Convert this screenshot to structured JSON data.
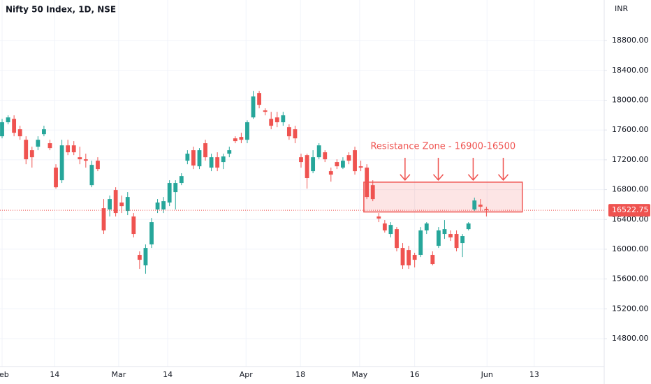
{
  "chart_data": {
    "type": "candlestick",
    "title": "Nifty 50 Index, 1D, NSE",
    "currency": "INR",
    "annotation": "Resistance Zone - 16900-16500",
    "up_color": "#26a69a",
    "down_color": "#ef5350",
    "grid": true,
    "open": [
      17516,
      17704,
      17750,
      17610,
      17469,
      17329,
      17376,
      17544,
      17423,
      17095,
      16926,
      17394,
      17394,
      17235,
      17207,
      16860,
      17188,
      16551,
      16533,
      16795,
      16626,
      16514,
      16439,
      15924,
      15783,
      16064,
      16533,
      16533,
      16626,
      16767,
      16889,
      17188,
      17329,
      17113,
      17423,
      17095,
      17235,
      17170,
      17282,
      17488,
      17507,
      17469,
      17769,
      18097,
      17863,
      17750,
      17769,
      17704,
      17638,
      17610,
      17235,
      17263,
      17048,
      17235,
      17301,
      17048,
      17170,
      17095,
      17263,
      17329,
      17113,
      17095,
      16860,
      16439,
      16345,
      16205,
      16270,
      16017,
      15989,
      15924,
      15924,
      16252,
      15924,
      16045,
      16205,
      16205,
      16205,
      16083,
      16270,
      16533,
      16598,
      16540
    ],
    "high": [
      17750,
      17797,
      17797,
      17657,
      17516,
      17376,
      17516,
      17657,
      17469,
      17141,
      17469,
      17469,
      17451,
      17376,
      17282,
      17188,
      17235,
      16673,
      16720,
      16832,
      16720,
      16767,
      16486,
      15971,
      16064,
      16420,
      16673,
      16701,
      16926,
      16926,
      17020,
      17329,
      17376,
      17357,
      17469,
      17282,
      17301,
      17282,
      17376,
      17516,
      17563,
      17730,
      18125,
      18125,
      17891,
      17844,
      17844,
      17844,
      17676,
      17657,
      17282,
      17282,
      17329,
      17423,
      17329,
      17095,
      17207,
      17235,
      17301,
      17376,
      17188,
      17141,
      16926,
      16486,
      16392,
      16364,
      16298,
      16083,
      16045,
      15952,
      16298,
      16364,
      15971,
      16298,
      16392,
      16252,
      16252,
      16205,
      16364,
      16692,
      16673,
      16570
    ],
    "low": [
      17488,
      17676,
      17516,
      17469,
      17141,
      17095,
      17329,
      17516,
      17329,
      16813,
      16889,
      17263,
      17263,
      17141,
      17095,
      16832,
      17048,
      16205,
      16439,
      16439,
      16486,
      16458,
      16158,
      15736,
      15671,
      16017,
      16486,
      16486,
      16579,
      16533,
      16860,
      17141,
      17076,
      17076,
      17188,
      17048,
      17048,
      17076,
      17235,
      17423,
      17423,
      17423,
      17750,
      17891,
      17797,
      17610,
      17638,
      17657,
      17469,
      17423,
      17095,
      16813,
      17020,
      17207,
      17170,
      16907,
      17076,
      17076,
      17141,
      17001,
      17048,
      16673,
      16645,
      16364,
      16223,
      16158,
      15971,
      15736,
      15736,
      15755,
      15895,
      16205,
      15783,
      16017,
      16139,
      16111,
      15971,
      15895,
      16252,
      16514,
      16514,
      16439
    ],
    "close": [
      17704,
      17769,
      17563,
      17516,
      17207,
      17235,
      17469,
      17610,
      17357,
      16832,
      17394,
      17301,
      17301,
      17207,
      17188,
      17132,
      17076,
      16252,
      16673,
      16486,
      16579,
      16701,
      16205,
      15858,
      16017,
      16364,
      16626,
      16645,
      16889,
      16889,
      16982,
      17282,
      17123,
      17329,
      17235,
      17235,
      17095,
      17245,
      17329,
      17451,
      17469,
      17704,
      18050,
      17938,
      17844,
      17657,
      17704,
      17797,
      17516,
      17488,
      17170,
      16955,
      17235,
      17394,
      17207,
      17001,
      17113,
      17188,
      17188,
      17048,
      17095,
      16701,
      16673,
      16411,
      16252,
      16326,
      16017,
      15783,
      15783,
      15858,
      16252,
      16345,
      15802,
      16252,
      16270,
      16158,
      16017,
      16177,
      16345,
      16654,
      16570,
      16522.75
    ],
    "xlim": [
      -0.35,
      100.7
    ],
    "xticks": [
      {
        "value": 0,
        "label": "Feb"
      },
      {
        "value": 8.8,
        "label": "14"
      },
      {
        "value": 19.5,
        "label": "Mar"
      },
      {
        "value": 27.7,
        "label": "14"
      },
      {
        "value": 40.8,
        "label": "Apr"
      },
      {
        "value": 49.9,
        "label": "18"
      },
      {
        "value": 59.8,
        "label": "May"
      },
      {
        "value": 69,
        "label": "16"
      },
      {
        "value": 81.1,
        "label": "Jun"
      },
      {
        "value": 89,
        "label": "13"
      }
    ],
    "ylim": [
      14425,
      19345
    ],
    "yticks": [
      {
        "value": 14800,
        "label": "14800.00"
      },
      {
        "value": 15200,
        "label": "15200.00"
      },
      {
        "value": 15600,
        "label": "15600.00"
      },
      {
        "value": 16000,
        "label": "16000.00"
      },
      {
        "value": 16400,
        "label": "16400.00"
      },
      {
        "value": 16800,
        "label": "16800.00"
      },
      {
        "value": 17200,
        "label": "17200.00"
      },
      {
        "value": 17600,
        "label": "17600.00"
      },
      {
        "value": 18000,
        "label": "18000.00"
      },
      {
        "value": 18400,
        "label": "18400.00"
      },
      {
        "value": 18800,
        "label": "18800.00"
      }
    ],
    "zone": {
      "low": 16500,
      "high": 16900,
      "x": [
        60.5,
        87
      ]
    }
  }
}
